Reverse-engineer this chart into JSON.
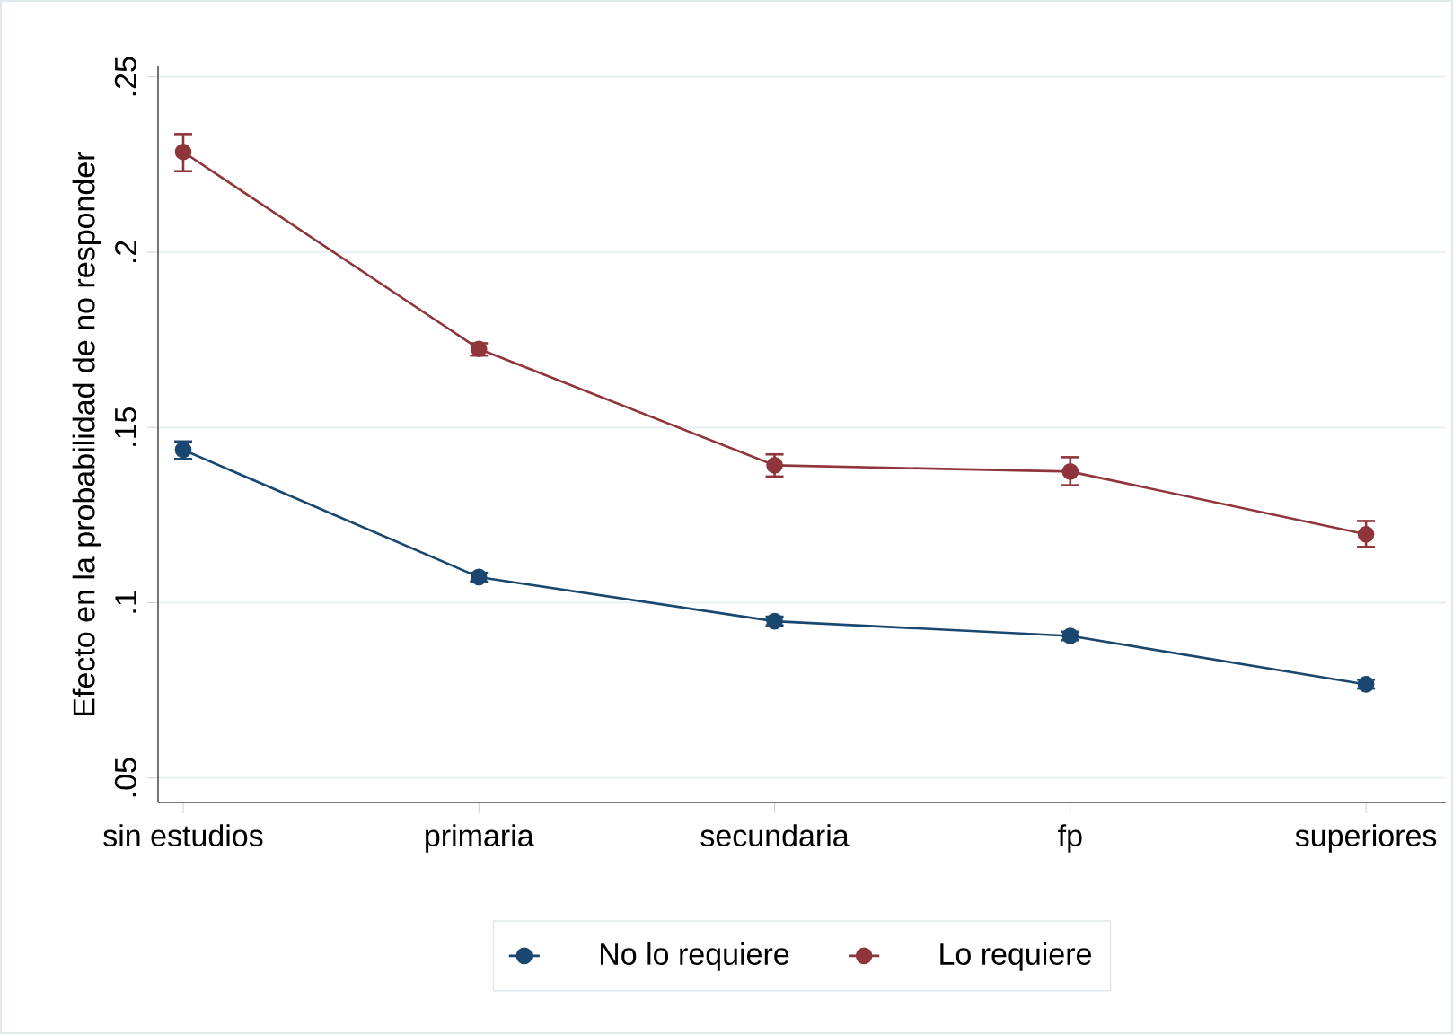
{
  "chart_data": {
    "type": "line",
    "ylabel": "Efecto en la probabilidad de no responder",
    "categories": [
      "sin estudios",
      "primaria",
      "secundaria",
      "fp",
      "superiores"
    ],
    "series": [
      {
        "name": "No lo requiere",
        "color": "#1a476f",
        "values": [
          0.1436,
          0.1073,
          0.0947,
          0.0905,
          0.0767
        ],
        "errors": [
          [
            0.141,
            0.146
          ],
          [
            0.106,
            0.1085
          ],
          [
            0.0935,
            0.096
          ],
          [
            0.0893,
            0.0917
          ],
          [
            0.0755,
            0.078
          ]
        ]
      },
      {
        "name": "Lo requiere",
        "color": "#90353b",
        "values": [
          0.2286,
          0.1724,
          0.1392,
          0.1374,
          0.1195
        ],
        "errors": [
          [
            0.2231,
            0.2337
          ],
          [
            0.1705,
            0.174
          ],
          [
            0.136,
            0.1423
          ],
          [
            0.1335,
            0.1415
          ],
          [
            0.1159,
            0.1233
          ]
        ]
      }
    ],
    "ylim": [
      0.043,
      0.253
    ],
    "yticks": [
      {
        "value": 0.05,
        "label": ".05"
      },
      {
        "value": 0.1,
        "label": ".1"
      },
      {
        "value": 0.15,
        "label": ".15"
      },
      {
        "value": 0.2,
        "label": ".2"
      },
      {
        "value": 0.25,
        "label": ".25"
      }
    ],
    "grid": "y",
    "legend": "bottom",
    "marker": "circle",
    "line_style": "solid"
  }
}
